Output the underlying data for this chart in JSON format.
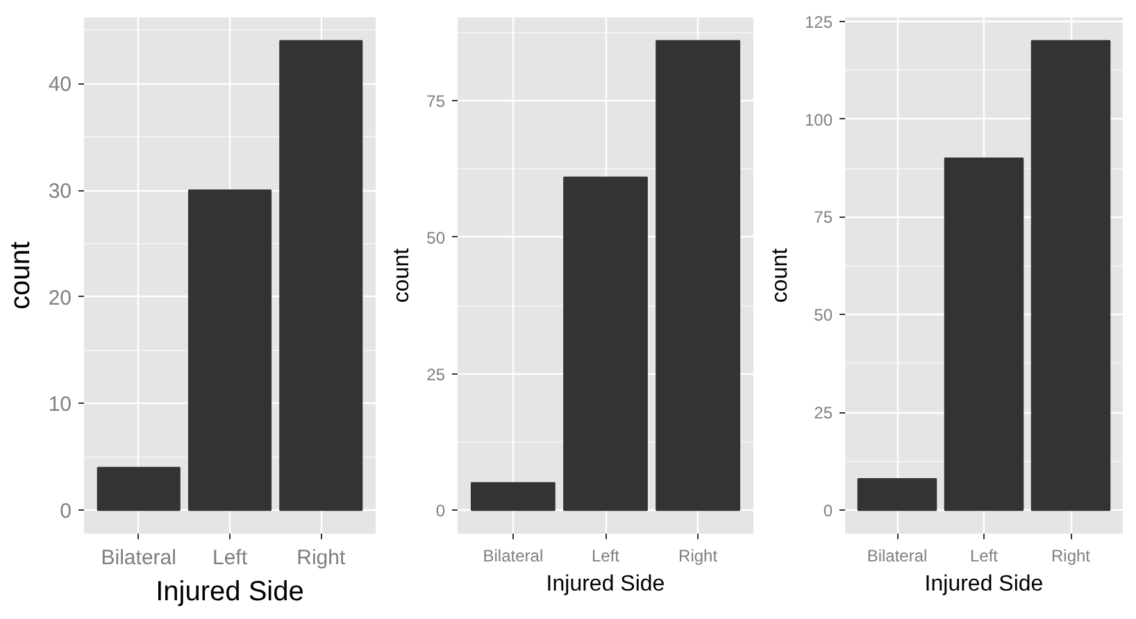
{
  "chart_data": [
    {
      "type": "bar",
      "categories": [
        "Bilateral",
        "Left",
        "Right"
      ],
      "values": [
        4,
        30,
        44
      ],
      "color": "#333333",
      "xlabel": "Injured Side",
      "ylabel": "count",
      "ylim": [
        -2.2,
        46.2
      ],
      "yticks": [
        0,
        10,
        20,
        30,
        40
      ],
      "grid": true
    },
    {
      "type": "bar",
      "categories": [
        "Bilateral",
        "Left",
        "Right"
      ],
      "values": [
        5,
        61,
        86
      ],
      "color": "#333333",
      "xlabel": "Injured Side",
      "ylabel": "count",
      "ylim": [
        -4.3,
        90.3
      ],
      "yticks": [
        0,
        25,
        50,
        75
      ],
      "grid": true
    },
    {
      "type": "bar",
      "categories": [
        "Bilateral",
        "Left",
        "Right"
      ],
      "values": [
        8,
        90,
        120
      ],
      "color": "#333333",
      "xlabel": "Injured Side",
      "ylabel": "count",
      "ylim": [
        -6,
        126
      ],
      "yticks": [
        0,
        25,
        50,
        75,
        100,
        125
      ],
      "grid": true
    }
  ]
}
